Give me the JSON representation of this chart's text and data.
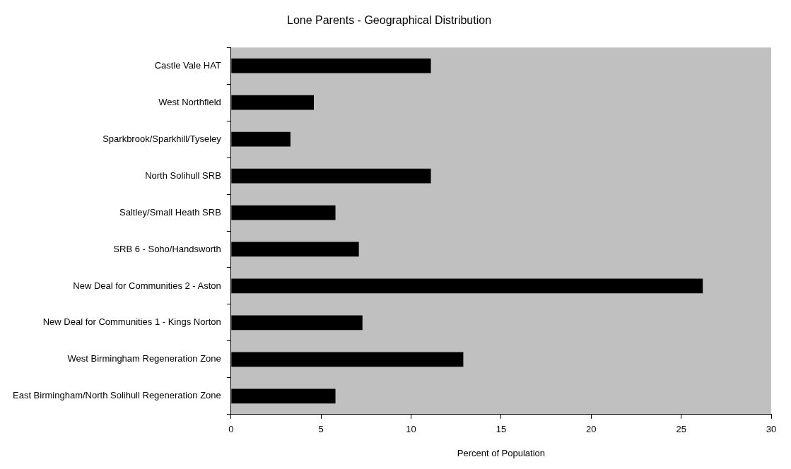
{
  "chart_data": {
    "type": "bar",
    "orientation": "horizontal",
    "title": "Lone Parents - Geographical Distribution",
    "xlabel": "Percent of Population",
    "categories": [
      "Castle Vale HAT",
      "West Northfield",
      "Sparkbrook/Sparkhill/Tyseley",
      "North Solihull SRB",
      "Saltley/Small Heath SRB",
      "SRB 6 - Soho/Handsworth",
      "New Deal for Communities 2 - Aston",
      "New Deal for Communities 1 - Kings Norton",
      "West Birmingham Regeneration Zone",
      "East Birmingham/North Solihull Regeneration Zone"
    ],
    "values": [
      11.1,
      4.6,
      3.3,
      11.1,
      5.8,
      7.1,
      26.2,
      7.3,
      12.9,
      5.8
    ],
    "color": "#000000",
    "xlim": [
      0,
      30
    ],
    "xticks": [
      0,
      5,
      10,
      15,
      20,
      25,
      30
    ],
    "grid": false,
    "legend": false
  }
}
